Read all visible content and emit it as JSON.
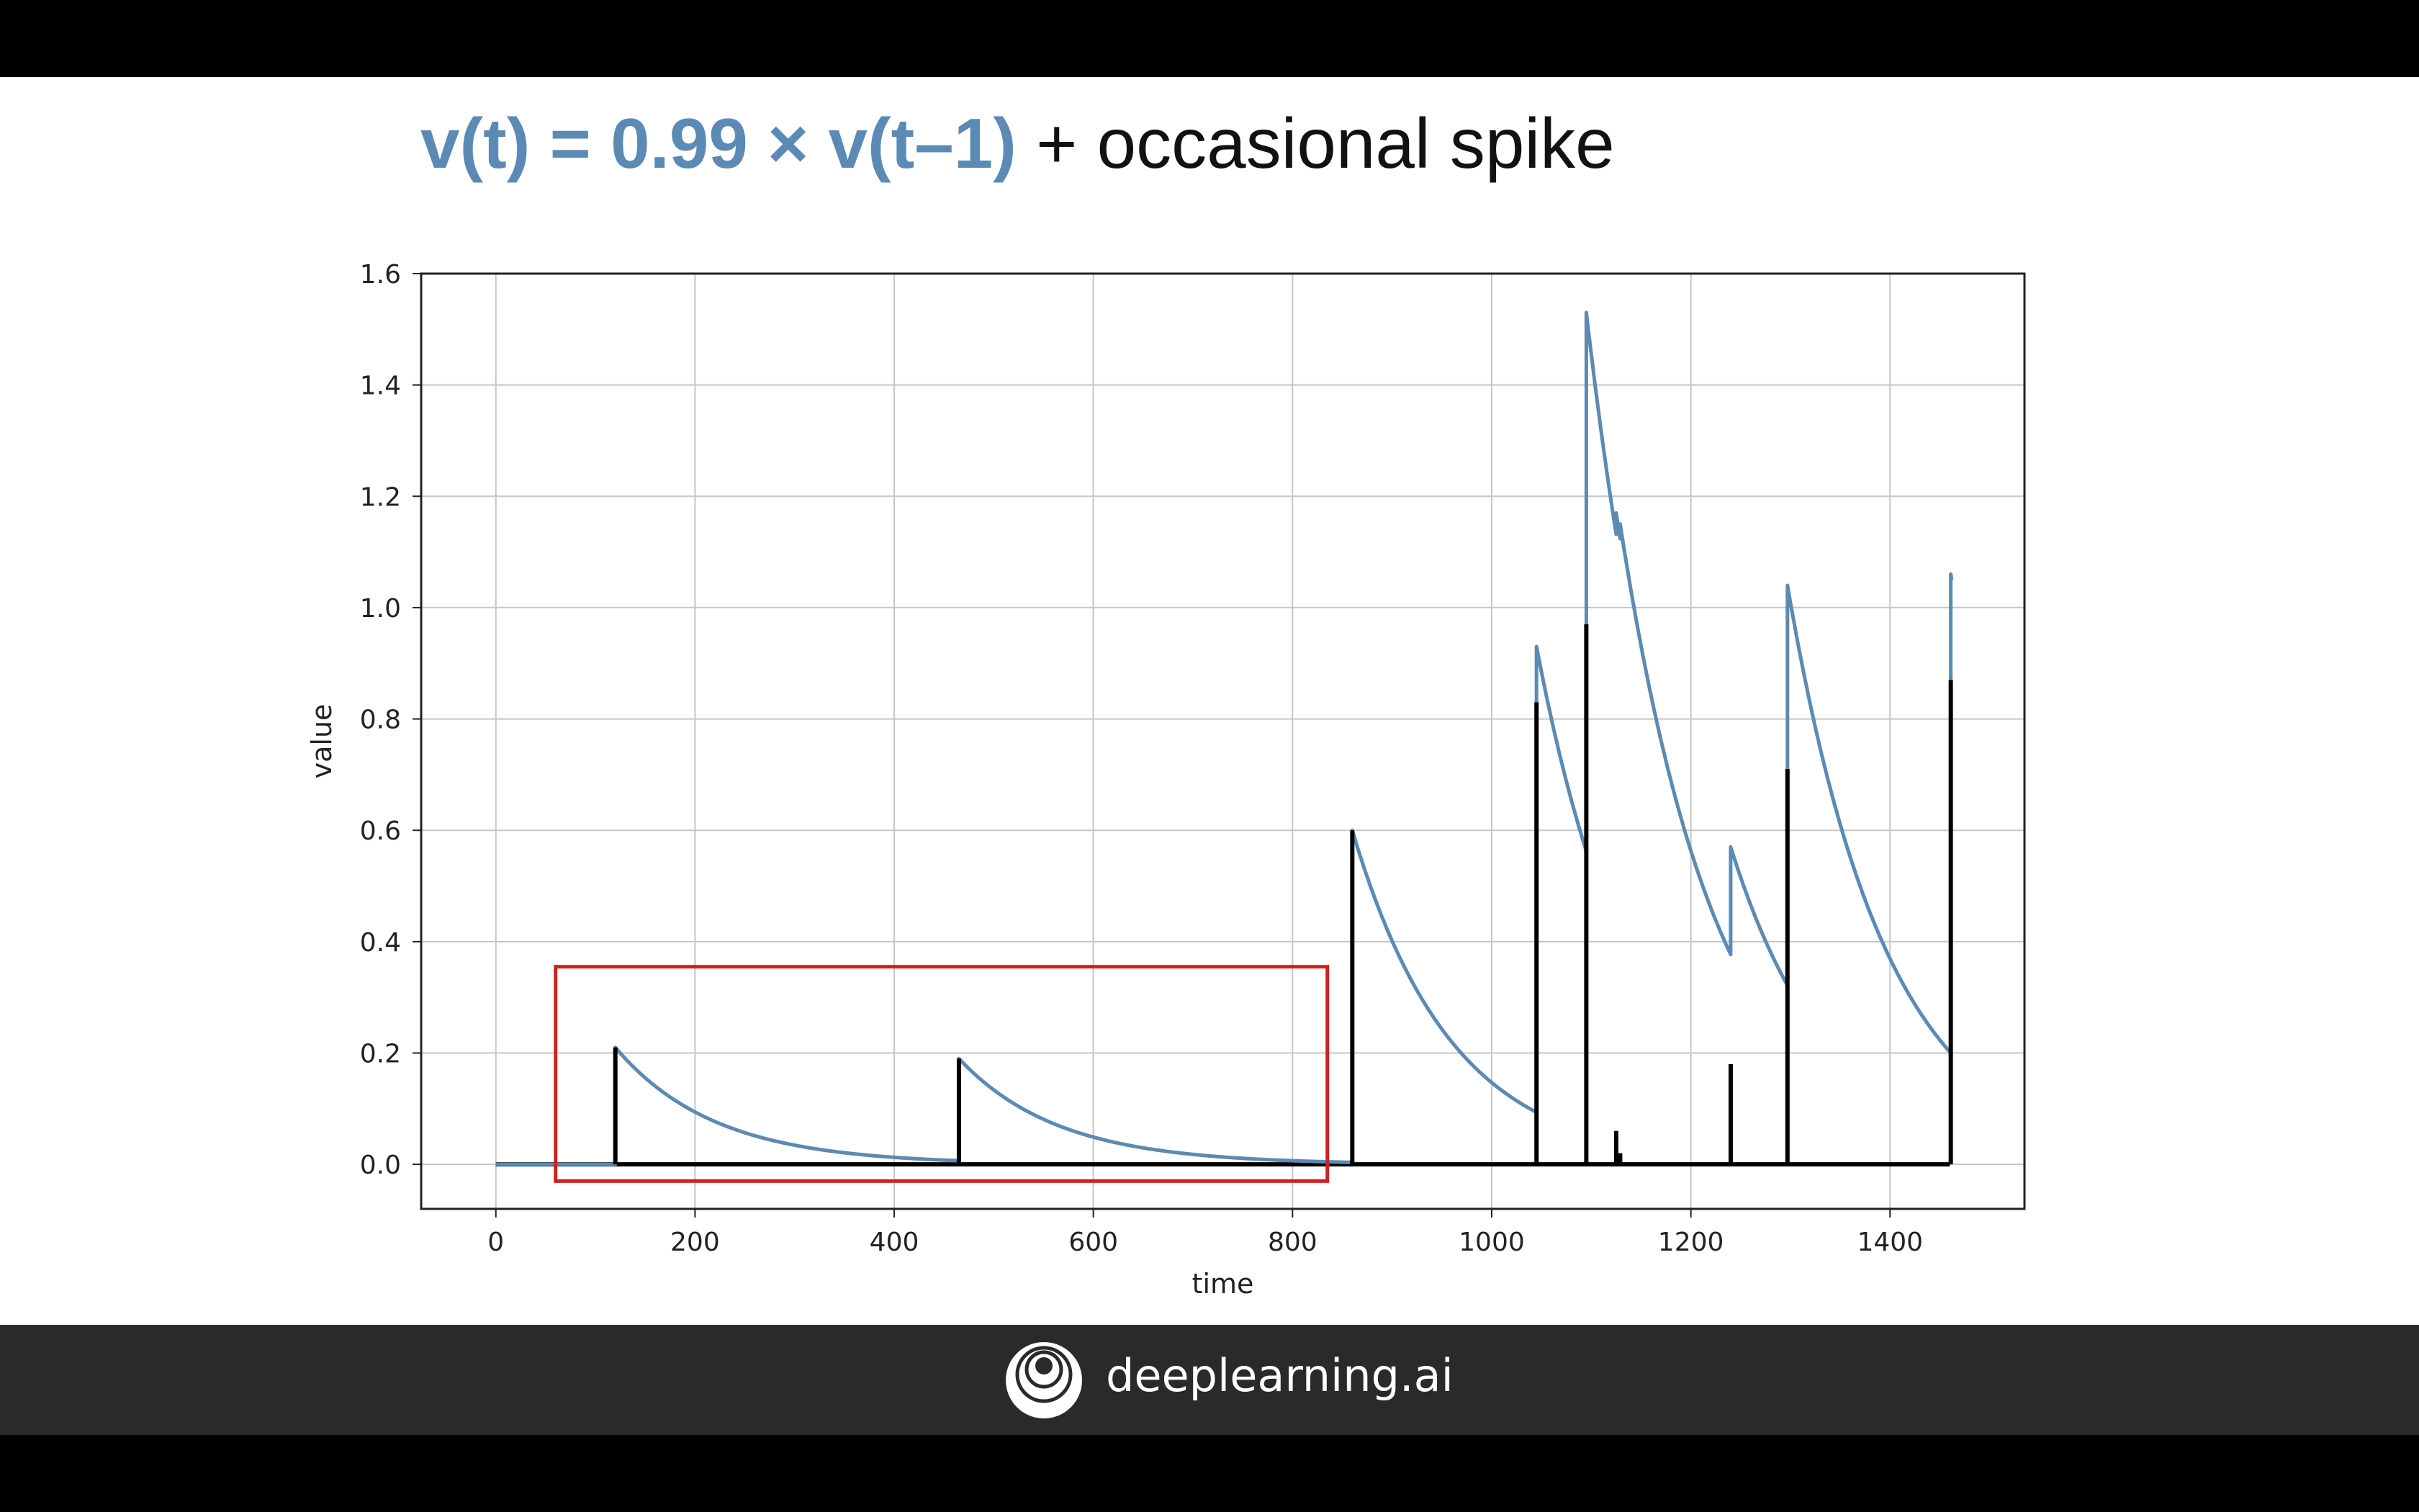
{
  "title": {
    "formula": "v(t) = 0.99 × v(t–1)",
    "rest": " + occasional spike"
  },
  "footer": {
    "brand": "deeplearning.ai"
  },
  "chart_data": {
    "type": "line",
    "xlabel": "time",
    "ylabel": "value",
    "xlim": [
      -75,
      1535
    ],
    "ylim": [
      -0.08,
      1.6
    ],
    "xticks": [
      0,
      200,
      400,
      600,
      800,
      1000,
      1200,
      1400
    ],
    "yticks": [
      0.0,
      0.2,
      0.4,
      0.6,
      0.8,
      1.0,
      1.2,
      1.4,
      1.6
    ],
    "ytick_labels": [
      "0.0",
      "0.2",
      "0.4",
      "0.6",
      "0.8",
      "1.0",
      "1.2",
      "1.4",
      "1.6"
    ],
    "grid": true,
    "decay_factor": 0.99,
    "series": [
      {
        "color": "#5b8ab4",
        "kind": "decaying value v(t)",
        "start": 0,
        "end": 1460,
        "segments": [
          {
            "t0": 0,
            "t1": 120,
            "v0": 0.0
          },
          {
            "t0": 120,
            "t1": 465,
            "v0": 0.21
          },
          {
            "t0": 465,
            "t1": 860,
            "v0": 0.19
          },
          {
            "t0": 860,
            "t1": 1045,
            "v0": 0.6
          },
          {
            "t0": 1045,
            "t1": 1095,
            "v0": 0.93
          },
          {
            "t0": 1095,
            "t1": 1125,
            "v0": 1.53
          },
          {
            "t0": 1125,
            "t1": 1129,
            "v0": 1.17
          },
          {
            "t0": 1129,
            "t1": 1240,
            "v0": 1.15
          },
          {
            "t0": 1240,
            "t1": 1297,
            "v0": 0.57
          },
          {
            "t0": 1297,
            "t1": 1461,
            "v0": 1.04
          },
          {
            "t0": 1461,
            "t1": 1462,
            "v0": 1.06
          }
        ]
      },
      {
        "color": "#000000",
        "kind": "spikes",
        "spikes": [
          {
            "t": 120,
            "v": 0.21
          },
          {
            "t": 465,
            "v": 0.19
          },
          {
            "t": 860,
            "v": 0.6
          },
          {
            "t": 1045,
            "v": 0.83
          },
          {
            "t": 1095,
            "v": 0.97
          },
          {
            "t": 1125,
            "v": 0.06
          },
          {
            "t": 1129,
            "v": 0.02
          },
          {
            "t": 1240,
            "v": 0.18
          },
          {
            "t": 1297,
            "v": 0.71
          },
          {
            "t": 1461,
            "v": 0.87
          }
        ]
      }
    ],
    "highlight_box": {
      "color": "#cc2222",
      "x_range": [
        60,
        835
      ],
      "y_range": [
        -0.03,
        0.355
      ]
    }
  }
}
